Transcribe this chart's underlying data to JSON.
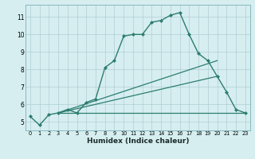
{
  "title": "",
  "xlabel": "Humidex (Indice chaleur)",
  "ylabel": "",
  "bg_color": "#d6eef0",
  "line_color": "#2d7d6e",
  "grid_color": "#b0ced4",
  "xlim": [
    -0.5,
    23.5
  ],
  "ylim": [
    4.5,
    11.7
  ],
  "xticks": [
    0,
    1,
    2,
    3,
    4,
    5,
    6,
    7,
    8,
    9,
    10,
    11,
    12,
    13,
    14,
    15,
    16,
    17,
    18,
    19,
    20,
    21,
    22,
    23
  ],
  "yticks": [
    5,
    6,
    7,
    8,
    9,
    10,
    11
  ],
  "series": [
    {
      "x": [
        0,
        1,
        2,
        3,
        4,
        5,
        6,
        7,
        8,
        9,
        10,
        11,
        12,
        13,
        14,
        15,
        16,
        17,
        18,
        19,
        20,
        21,
        22,
        23
      ],
      "y": [
        5.3,
        4.8,
        5.4,
        5.5,
        5.7,
        5.5,
        6.1,
        6.3,
        8.1,
        8.5,
        9.9,
        10.0,
        10.0,
        10.7,
        10.8,
        11.1,
        11.25,
        10.0,
        8.9,
        8.5,
        7.6,
        6.7,
        5.7,
        5.5
      ],
      "marker": "D",
      "markersize": 2.0,
      "linewidth": 1.0,
      "has_marker": true
    },
    {
      "x": [
        3,
        23
      ],
      "y": [
        5.5,
        5.5
      ],
      "has_marker": false,
      "linewidth": 0.9
    },
    {
      "x": [
        3,
        20
      ],
      "y": [
        5.5,
        7.6
      ],
      "has_marker": false,
      "linewidth": 0.9
    },
    {
      "x": [
        3,
        20
      ],
      "y": [
        5.5,
        8.5
      ],
      "has_marker": false,
      "linewidth": 0.9
    }
  ]
}
